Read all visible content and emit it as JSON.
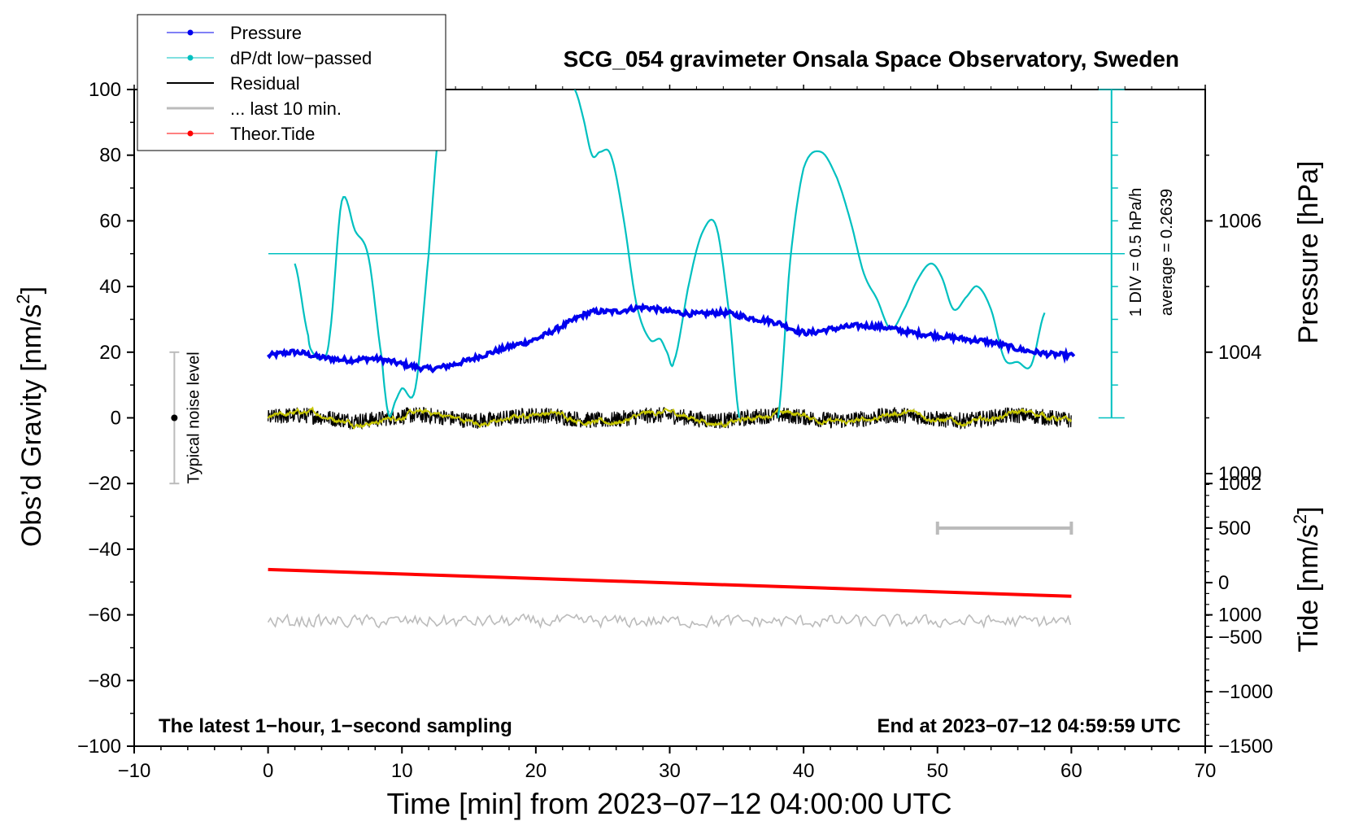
{
  "chart_data": {
    "type": "line",
    "title": "SCG_054 gravimeter Onsala Space Observatory, Sweden",
    "xlabel": "Time [min] from 2023−07−12 04:00:00 UTC",
    "ylabel_left": "Obs’d Gravity [nm/s",
    "ylabel_left_sup": "2",
    "ylabel_left_end": "]",
    "ylabel_pressure": "Pressure [hPa]",
    "ylabel_tide": "Tide [nm/s",
    "ylabel_tide_sup": "2",
    "ylabel_tide_end": "]",
    "xlim": [
      -10,
      70
    ],
    "ylim_left": [
      -100,
      100
    ],
    "pressure_range": [
      998,
      1008
    ],
    "tide_range": [
      -1500,
      1000
    ],
    "x_ticks": [
      "−10",
      "0",
      "10",
      "20",
      "30",
      "40",
      "50",
      "60",
      "70"
    ],
    "x_tick_values": [
      -10,
      0,
      10,
      20,
      30,
      40,
      50,
      60,
      70
    ],
    "y_ticks": [
      "100",
      "80",
      "60",
      "40",
      "20",
      "0",
      "−20",
      "−40",
      "−60",
      "−80",
      "−100"
    ],
    "y_tick_values": [
      100,
      80,
      60,
      40,
      20,
      0,
      -20,
      -40,
      -60,
      -80,
      -100
    ],
    "pressure_ticks": [
      "1006",
      "1004",
      "1002",
      "1000"
    ],
    "pressure_tick_values": [
      1006,
      1004,
      1002,
      1000
    ],
    "tide_ticks": [
      "1000",
      "500",
      "0",
      "−500",
      "−1000",
      "−1500"
    ],
    "tide_tick_values": [
      1000,
      500,
      0,
      -500,
      -1000,
      -1500
    ],
    "legend": [
      "Pressure",
      "dP/dt low−passed",
      "Residual",
      "... last 10 min.",
      "Theor.Tide"
    ],
    "legend_position": "top-left",
    "annotation_left": "The latest 1−hour, 1−second sampling",
    "annotation_right": "End at 2023−07−12 04:59:59 UTC",
    "noise_label": "Typical noise level",
    "noise_bar": [
      -20,
      20
    ],
    "div_label": "1 DIV = 0.5 hPa/h",
    "average_label": "average = 0.2639",
    "dpdt_baseline": 50,
    "ten_min_bar_minutes": [
      50,
      60
    ],
    "ten_min_bar_tide": 500,
    "colors": {
      "pressure": "#0000ee",
      "dpdt": "#00c0c0",
      "residual": "#000000",
      "residual_smooth": "#c8c800",
      "last10": "#bbbbbb",
      "tide": "#ff0000"
    },
    "series": [
      {
        "name": "Pressure",
        "axis": "pressure",
        "x": [
          0,
          2,
          4,
          6,
          8,
          10,
          12,
          14,
          16,
          18,
          20,
          22,
          24,
          26,
          28,
          30,
          32,
          34,
          36,
          38,
          40,
          42,
          44,
          46,
          48,
          50,
          52,
          54,
          56,
          58,
          60
        ],
        "y": [
          1003.95,
          1004.0,
          1003.92,
          1003.88,
          1003.9,
          1003.82,
          1003.75,
          1003.82,
          1003.95,
          1004.08,
          1004.2,
          1004.4,
          1004.6,
          1004.62,
          1004.68,
          1004.62,
          1004.58,
          1004.6,
          1004.52,
          1004.45,
          1004.3,
          1004.35,
          1004.4,
          1004.38,
          1004.3,
          1004.25,
          1004.2,
          1004.15,
          1004.05,
          1003.98,
          1003.95
        ]
      },
      {
        "name": "dP/dt low−passed",
        "axis": "left",
        "x": [
          2,
          3,
          3.3,
          4,
          4.6,
          5.5,
          6.5,
          7.5,
          8.5,
          9,
          9.5,
          10,
          11,
          12,
          12.8,
          13.1,
          22.9,
          23.5,
          24.2,
          24.8,
          25.6,
          26.5,
          27.5,
          28.5,
          29.3,
          29.8,
          30.3,
          31.5,
          32.5,
          33.5,
          34.5,
          35.2,
          38.1,
          39,
          40,
          41.3,
          42.5,
          43.5,
          44.5,
          45.5,
          46.5,
          47.5,
          48.5,
          49.5,
          50.3,
          51.2,
          52.2,
          53,
          54,
          55,
          56,
          57,
          58
        ],
        "y": [
          47,
          25,
          20,
          18,
          25,
          66,
          57,
          49,
          18,
          1,
          5,
          9,
          9,
          50,
          90,
          100,
          100,
          92,
          80,
          81,
          80,
          62,
          35,
          24,
          24,
          20,
          17,
          42,
          57,
          58,
          30,
          0,
          0,
          48,
          76,
          81,
          73,
          60,
          44,
          36,
          27,
          33,
          42,
          47,
          43,
          33,
          37,
          40,
          33,
          18,
          17,
          16,
          32
        ]
      },
      {
        "name": "Residual",
        "axis": "left",
        "x_range": [
          0,
          60
        ],
        "amplitude": 2.5
      },
      {
        "name": "... last 10 min.",
        "axis": "left",
        "x_range": [
          0,
          60
        ],
        "center": -62,
        "amplitude": 2.5
      },
      {
        "name": "Theor.Tide",
        "axis": "tide",
        "x": [
          0,
          60
        ],
        "y": [
          120,
          -125
        ]
      }
    ]
  }
}
